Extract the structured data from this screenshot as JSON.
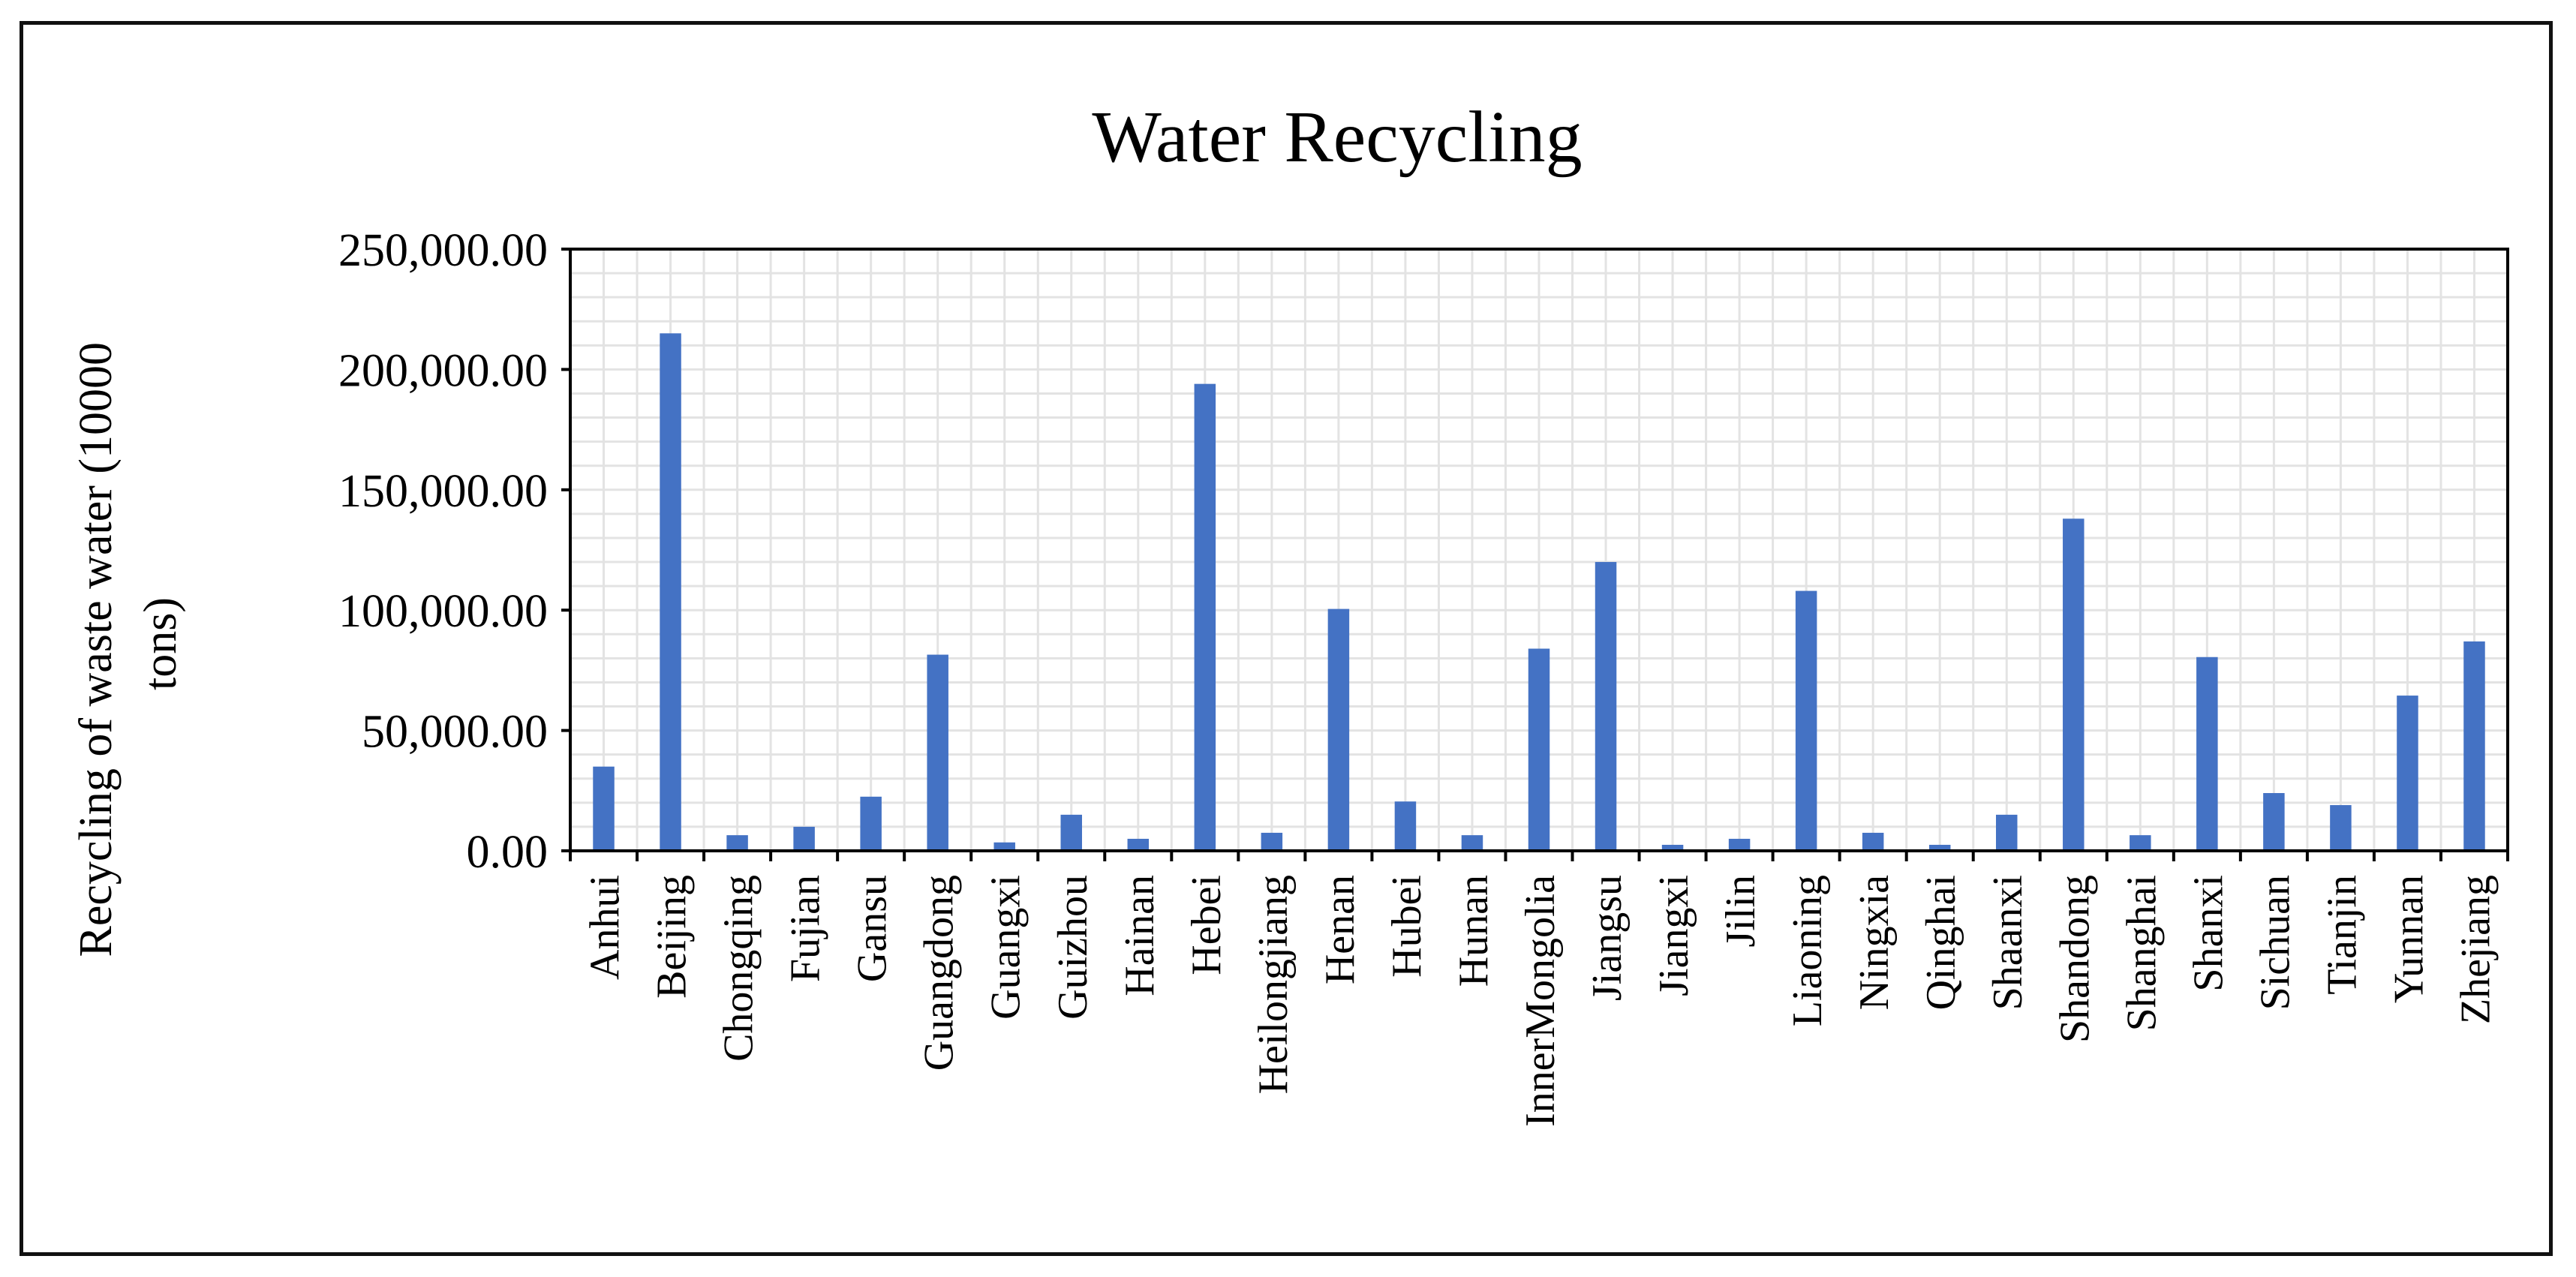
{
  "chart_data": {
    "type": "bar",
    "title": "Water Recycling",
    "xlabel": "",
    "ylabel": "Recycling of waste water (10000 tons)",
    "ylabel_lines": [
      "Recycling of waste water (10000",
      "tons)"
    ],
    "ylim": [
      0,
      250000
    ],
    "yticks": [
      0,
      50000,
      100000,
      150000,
      200000,
      250000
    ],
    "ytick_labels": [
      "0.00",
      "50,000.00",
      "100,000.00",
      "150,000.00",
      "200,000.00",
      "250,000.00"
    ],
    "grid": true,
    "legend": "none",
    "bar_color": "#4472C4",
    "categories": [
      "Anhui",
      "Beijing",
      "Chongqing",
      "Fujian",
      "Gansu",
      "Guangdong",
      "Guangxi",
      "Guizhou",
      "Hainan",
      "Hebei",
      "Heilongjiang",
      "Henan",
      "Hubei",
      "Hunan",
      "InnerMongolia",
      "Jiangsu",
      "Jiangxi",
      "Jilin",
      "Liaoning",
      "Ningxia",
      "Qinghai",
      "Shaanxi",
      "Shandong",
      "Shanghai",
      "Shanxi",
      "Sichuan",
      "Tianjin",
      "Yunnan",
      "Zhejiang"
    ],
    "values": [
      35000,
      215000,
      6500,
      10000,
      22500,
      81500,
      3500,
      15000,
      5000,
      194000,
      7500,
      100500,
      20500,
      6500,
      84000,
      120000,
      2500,
      5000,
      108000,
      7500,
      2500,
      15000,
      138000,
      6500,
      80500,
      24000,
      19000,
      64500,
      87000
    ]
  }
}
